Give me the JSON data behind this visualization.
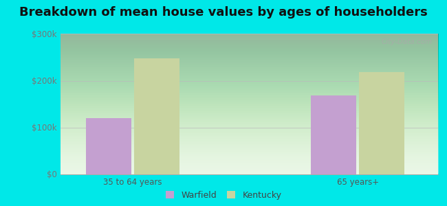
{
  "title": "Breakdown of mean house values by ages of householders",
  "categories": [
    "35 to 64 years",
    "65 years+"
  ],
  "warfield_values": [
    120000,
    168000
  ],
  "kentucky_values": [
    248000,
    218000
  ],
  "warfield_color": "#c4a0d0",
  "kentucky_color": "#c8d4a0",
  "ylim": [
    0,
    300000
  ],
  "yticks": [
    0,
    100000,
    200000,
    300000
  ],
  "ytick_labels": [
    "$0",
    "$100k",
    "$200k",
    "$300k"
  ],
  "background_color": "#00e8e8",
  "legend_labels": [
    "Warfield",
    "Kentucky"
  ],
  "bar_width": 0.28,
  "watermark": "City-Data.com",
  "title_fontsize": 13,
  "tick_fontsize": 8.5,
  "legend_fontsize": 9
}
